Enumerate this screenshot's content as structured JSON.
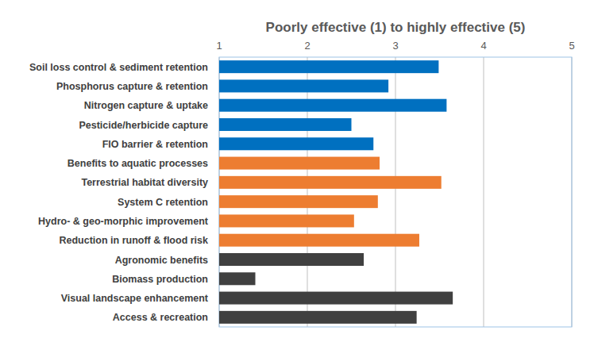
{
  "chart_data": {
    "type": "bar",
    "orientation": "horizontal",
    "title": "Poorly effective (1) to highly effective (5)",
    "categories": [
      "Soil loss control & sediment retention",
      "Phosphorus capture & retention",
      "Nitrogen capture & uptake",
      "Pesticide/herbicide capture",
      "FIO barrier & retention",
      "Benefits to aquatic processes",
      "Terrestrial habitat diversity",
      "System C retention",
      "Hydro- & geo-morphic improvement",
      "Reduction in runoff & flood risk",
      "Agronomic benefits",
      "Biomass production",
      "Visual landscape enhancement",
      "Access & recreation"
    ],
    "values": [
      3.49,
      2.92,
      3.58,
      2.5,
      2.75,
      2.82,
      3.52,
      2.8,
      2.53,
      3.27,
      2.64,
      1.41,
      3.65,
      3.24
    ],
    "colors": [
      "#0070c0",
      "#0070c0",
      "#0070c0",
      "#0070c0",
      "#0070c0",
      "#ed7d31",
      "#ed7d31",
      "#ed7d31",
      "#ed7d31",
      "#ed7d31",
      "#404040",
      "#404040",
      "#404040",
      "#404040"
    ],
    "xlim": [
      1,
      5
    ],
    "xticks": [
      1,
      2,
      3,
      4,
      5
    ],
    "grid": true
  }
}
